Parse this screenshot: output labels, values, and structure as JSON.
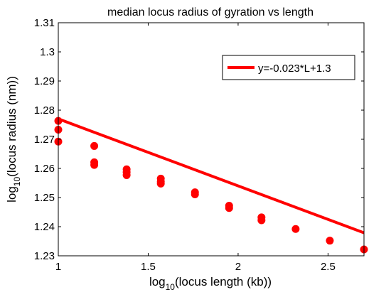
{
  "chart_data": {
    "type": "scatter",
    "title": "median locus radius of gyration vs length",
    "xlabel": {
      "pre": "log",
      "sub": "10",
      "post": "(locus length (kb))"
    },
    "ylabel": {
      "pre": "log",
      "sub": "10",
      "post": "(locus radius (nm))"
    },
    "xlim": [
      1,
      2.7
    ],
    "ylim": [
      1.23,
      1.31
    ],
    "xticks": [
      1,
      1.5,
      2,
      2.5
    ],
    "xtick_labels": [
      "1",
      "1.5",
      "2",
      "2.5"
    ],
    "yticks": [
      1.23,
      1.24,
      1.25,
      1.26,
      1.27,
      1.28,
      1.29,
      1.3,
      1.31
    ],
    "ytick_labels": [
      "1.23",
      "1.24",
      "1.25",
      "1.26",
      "1.27",
      "1.28",
      "1.29",
      "1.3",
      "1.31"
    ],
    "grid": false,
    "legend_position": "top-right",
    "legend_label": "y=-0.023*L+1.3",
    "color": "#ff0000",
    "fit": {
      "slope": -0.023,
      "intercept": 1.3
    },
    "points": [
      {
        "x": 1.0,
        "y": 1.2763
      },
      {
        "x": 1.0,
        "y": 1.2733
      },
      {
        "x": 1.0,
        "y": 1.2692
      },
      {
        "x": 1.2,
        "y": 1.2677
      },
      {
        "x": 1.2,
        "y": 1.2621
      },
      {
        "x": 1.2,
        "y": 1.2612
      },
      {
        "x": 1.38,
        "y": 1.2597
      },
      {
        "x": 1.38,
        "y": 1.2587
      },
      {
        "x": 1.38,
        "y": 1.2577
      },
      {
        "x": 1.57,
        "y": 1.2565
      },
      {
        "x": 1.57,
        "y": 1.2555
      },
      {
        "x": 1.57,
        "y": 1.2548
      },
      {
        "x": 1.76,
        "y": 1.2518
      },
      {
        "x": 1.76,
        "y": 1.2511
      },
      {
        "x": 1.95,
        "y": 1.2472
      },
      {
        "x": 1.95,
        "y": 1.2464
      },
      {
        "x": 2.13,
        "y": 1.2432
      },
      {
        "x": 2.13,
        "y": 1.2422
      },
      {
        "x": 2.32,
        "y": 1.2392
      },
      {
        "x": 2.51,
        "y": 1.2352
      },
      {
        "x": 2.7,
        "y": 1.2322
      }
    ]
  }
}
